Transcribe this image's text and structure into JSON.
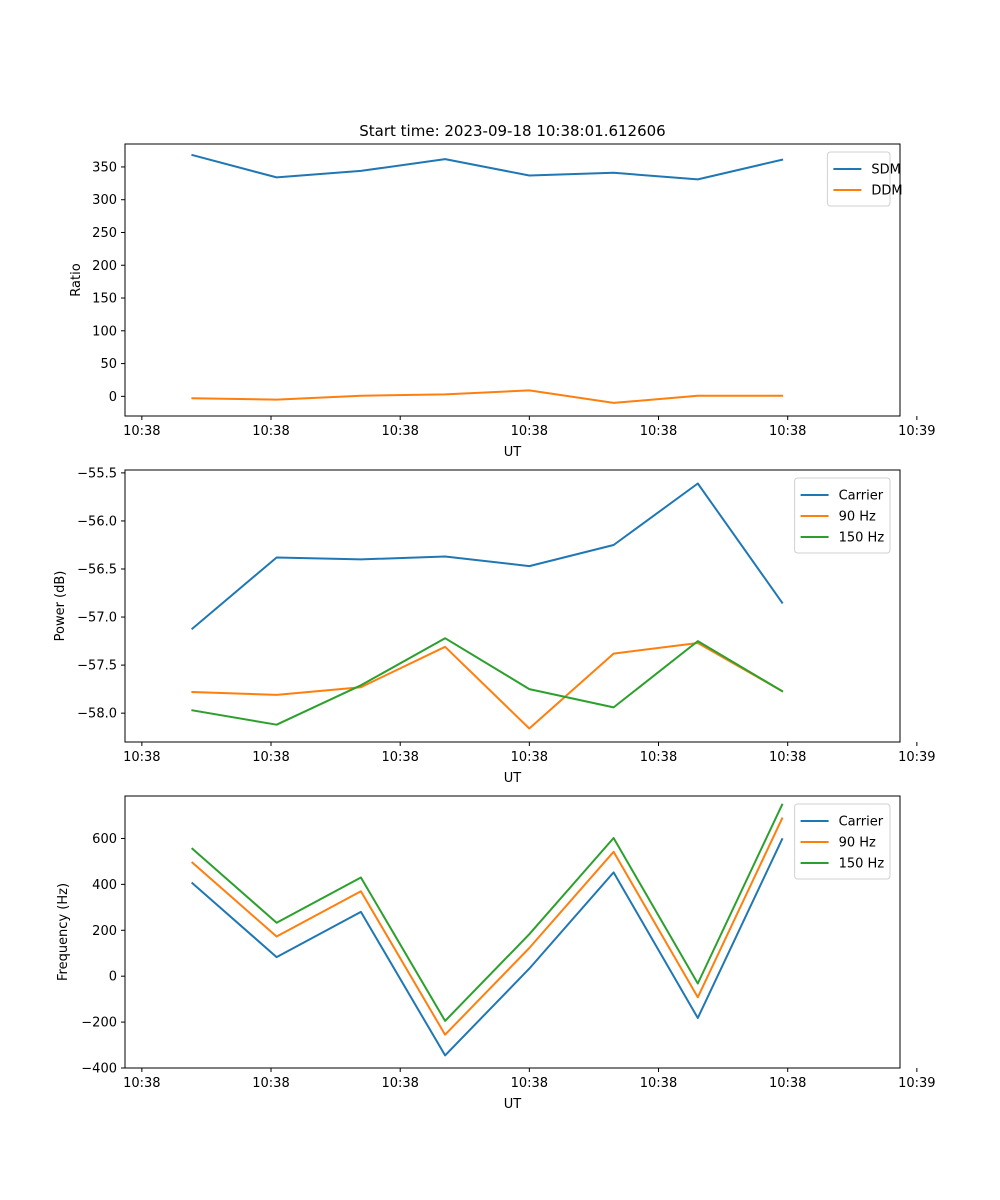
{
  "title": "Start time: 2023-09-18 10:38:01.612606",
  "colors": {
    "c0": "#1f77b4",
    "c1": "#ff7f0e",
    "c2": "#2ca02c"
  },
  "chart_data": [
    {
      "type": "line",
      "title": "Start time: 2023-09-18 10:38:01.612606",
      "xlabel": "UT",
      "ylabel": "Ratio",
      "x": [
        1,
        2,
        3,
        4,
        5,
        6,
        7,
        8
      ],
      "xlim": [
        0.2,
        9.4
      ],
      "xticks": [
        0.4,
        1.933,
        3.467,
        5.0,
        6.533,
        8.067,
        9.6
      ],
      "xticklabels": [
        "10:38",
        "10:38",
        "10:38",
        "10:38",
        "10:38",
        "10:38",
        "10:39"
      ],
      "ylim": [
        -30,
        385
      ],
      "yticks": [
        0,
        50,
        100,
        150,
        200,
        250,
        300,
        350
      ],
      "yticklabels": [
        "0",
        "50",
        "100",
        "150",
        "200",
        "250",
        "300",
        "350"
      ],
      "legend_loc": "top-right",
      "series": [
        {
          "name": "SDM",
          "color": "#1f77b4",
          "values": [
            368,
            334,
            344,
            362,
            337,
            341,
            331,
            361
          ]
        },
        {
          "name": "DDM",
          "color": "#ff7f0e",
          "values": [
            -3,
            -5,
            1,
            3,
            9,
            -10,
            1,
            1
          ]
        }
      ]
    },
    {
      "type": "line",
      "title": "",
      "xlabel": "UT",
      "ylabel": "Power (dB)",
      "x": [
        1,
        2,
        3,
        4,
        5,
        6,
        7,
        8
      ],
      "xlim": [
        0.2,
        9.4
      ],
      "xticks": [
        0.4,
        1.933,
        3.467,
        5.0,
        6.533,
        8.067,
        9.6
      ],
      "xticklabels": [
        "10:38",
        "10:38",
        "10:38",
        "10:38",
        "10:38",
        "10:38",
        "10:39"
      ],
      "ylim": [
        -58.3,
        -55.47
      ],
      "yticks": [
        -58.0,
        -57.5,
        -57.0,
        -56.5,
        -56.0,
        -55.5
      ],
      "yticklabels": [
        "−58.0",
        "−57.5",
        "−57.0",
        "−56.5",
        "−56.0",
        "−55.5"
      ],
      "legend_loc": "top-right",
      "series": [
        {
          "name": "Carrier",
          "color": "#1f77b4",
          "values": [
            -57.12,
            -56.38,
            -56.4,
            -56.37,
            -56.47,
            -56.25,
            -55.61,
            -56.85
          ]
        },
        {
          "name": "90 Hz",
          "color": "#ff7f0e",
          "values": [
            -57.78,
            -57.81,
            -57.73,
            -57.31,
            -58.16,
            -57.38,
            -57.27,
            -57.77
          ]
        },
        {
          "name": "150 Hz",
          "color": "#2ca02c",
          "values": [
            -57.97,
            -58.12,
            -57.71,
            -57.22,
            -57.75,
            -57.94,
            -57.25,
            -57.77
          ]
        }
      ]
    },
    {
      "type": "line",
      "title": "",
      "xlabel": "UT",
      "ylabel": "Frequency (Hz)",
      "x": [
        1,
        2,
        3,
        4,
        5,
        6,
        7,
        8
      ],
      "xlim": [
        0.2,
        9.4
      ],
      "xticks": [
        0.4,
        1.933,
        3.467,
        5.0,
        6.533,
        8.067,
        9.6
      ],
      "xticklabels": [
        "10:38",
        "10:38",
        "10:38",
        "10:38",
        "10:38",
        "10:38",
        "10:39"
      ],
      "ylim": [
        -400,
        785
      ],
      "yticks": [
        -400,
        -200,
        0,
        200,
        400,
        600
      ],
      "yticklabels": [
        "−400",
        "−200",
        "0",
        "200",
        "400",
        "600"
      ],
      "legend_loc": "top-right",
      "series": [
        {
          "name": "Carrier",
          "color": "#1f77b4",
          "values": [
            405,
            83,
            280,
            -345,
            33,
            452,
            -182,
            597
          ]
        },
        {
          "name": "90 Hz",
          "color": "#ff7f0e",
          "values": [
            495,
            173,
            370,
            -255,
            123,
            542,
            -92,
            687
          ]
        },
        {
          "name": "150 Hz",
          "color": "#2ca02c",
          "values": [
            555,
            233,
            430,
            -195,
            183,
            602,
            -32,
            747
          ]
        }
      ]
    }
  ]
}
